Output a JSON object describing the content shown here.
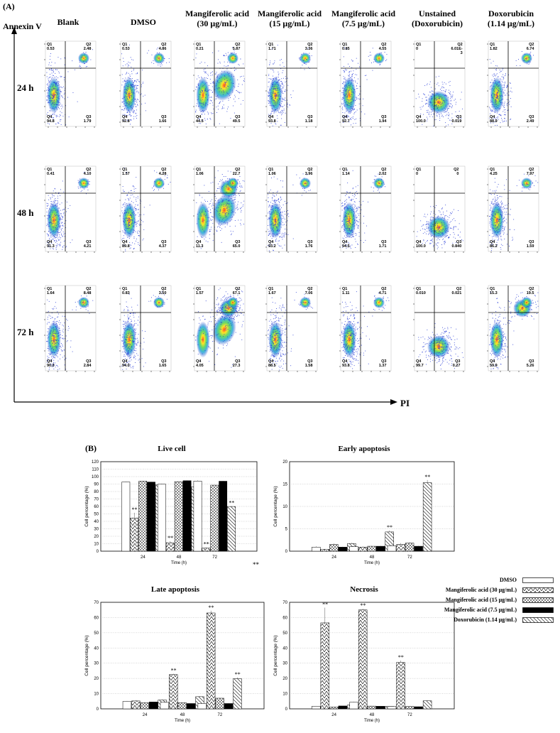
{
  "panel_a": {
    "label": "(A)",
    "y_axis_label": "Annexin V",
    "x_axis_label": "PI",
    "columns": [
      {
        "line1": "Blank",
        "line2": ""
      },
      {
        "line1": "DMSO",
        "line2": ""
      },
      {
        "line1": "Mangiferolic acid",
        "line2": "(30 μg/mL)"
      },
      {
        "line1": "Mangiferolic acid",
        "line2": "(15 μg/mL)"
      },
      {
        "line1": "Mangiferolic acid",
        "line2": "(7.5 μg/mL)"
      },
      {
        "line1": "Unstained",
        "line2": "(Doxorubicin)"
      },
      {
        "line1": "Doxorubicin",
        "line2": "(1.14 μg/mL)"
      }
    ],
    "rows": [
      "24 h",
      "48 h",
      "72 h"
    ],
    "quadrant_names": [
      "Q1",
      "Q2",
      "Q3",
      "Q4"
    ],
    "quadrant_values": [
      [
        [
          "0.53",
          "2.48",
          "1.79",
          "94.8"
        ],
        [
          "0.53",
          "4.86",
          "1.66",
          "92.8"
        ],
        [
          "0.21",
          "5.87",
          "49.5",
          "44.5"
        ],
        [
          "1.71",
          "3.36",
          "1.18",
          "93.8"
        ],
        [
          "0.85",
          "4.55",
          "1.94",
          "92.7"
        ],
        [
          "0",
          "6.01E-3",
          "0.019",
          "100.0"
        ],
        [
          "1.82",
          "6.74",
          "2.49",
          "88.9"
        ]
      ],
      [
        [
          "0.41",
          "4.10",
          "4.21",
          "91.3"
        ],
        [
          "1.57",
          "4.28",
          "4.37",
          "89.8"
        ],
        [
          "1.06",
          "22.7",
          "65.0",
          "11.3"
        ],
        [
          "1.06",
          "3.96",
          "1.76",
          "93.2"
        ],
        [
          "1.14",
          "2.02",
          "1.71",
          "94.5"
        ],
        [
          "0",
          "0",
          "0.840",
          "100.0"
        ],
        [
          "4.25",
          "7.97",
          "1.59",
          "86.2"
        ]
      ],
      [
        [
          "1.64",
          "8.48",
          "2.84",
          "90.0"
        ],
        [
          "0.83",
          "3.50",
          "1.65",
          "94.0"
        ],
        [
          "1.57",
          "67.1",
          "27.3",
          "4.05"
        ],
        [
          "1.67",
          "7.06",
          "1.58",
          "88.5"
        ],
        [
          "1.11",
          "4.71",
          "1.37",
          "93.8"
        ],
        [
          "0.010",
          "0.021",
          "0.27",
          "99.7"
        ],
        [
          "15.3",
          "19.5",
          "5.26",
          "59.9"
        ]
      ]
    ]
  },
  "panel_b": {
    "label": "(B)",
    "stray_mark": "**",
    "legend": [
      {
        "label": "DMSO",
        "pattern": "white"
      },
      {
        "label": "Mangiferolic acid (30 μg/mL)",
        "pattern": "triangles"
      },
      {
        "label": "Mangiferolic acid (15 μg/mL)",
        "pattern": "cross"
      },
      {
        "label": "Mangiferolic acid (7.5 μg/mL)",
        "pattern": "black"
      },
      {
        "label": "Doxorubicin (1.14 μg/mL)",
        "pattern": "diag"
      }
    ]
  },
  "chart_data": [
    {
      "type": "bar",
      "title": "Live cell",
      "xlabel": "Time (h)",
      "ylabel": "Cell percentage (%)",
      "categories": [
        "24",
        "48",
        "72"
      ],
      "ylim": [
        0,
        120
      ],
      "yticks": [
        0,
        10,
        20,
        30,
        40,
        50,
        60,
        70,
        80,
        90,
        100,
        110,
        120
      ],
      "series": [
        {
          "name": "DMSO",
          "values": [
            92.8,
            89.8,
            94.0
          ]
        },
        {
          "name": "Mangiferolic acid (30 μg/mL)",
          "values": [
            44.5,
            11.3,
            4.05
          ]
        },
        {
          "name": "Mangiferolic acid (15 μg/mL)",
          "values": [
            93.8,
            93.2,
            88.5
          ]
        },
        {
          "name": "Mangiferolic acid (7.5 μg/mL)",
          "values": [
            92.7,
            94.5,
            93.8
          ]
        },
        {
          "name": "Doxorubicin (1.14 μg/mL)",
          "values": [
            88.9,
            86.2,
            59.9
          ]
        }
      ],
      "errors": [
        [
          0.5,
          0.5,
          1.0
        ],
        [
          7,
          2,
          1
        ],
        [
          0.5,
          0.5,
          0.5
        ],
        [
          0.5,
          0.5,
          0.5
        ],
        [
          0.5,
          0.5,
          0.5
        ]
      ],
      "significance": [
        {
          "series": 1,
          "category": 0,
          "mark": "**"
        },
        {
          "series": 1,
          "category": 1,
          "mark": "**"
        },
        {
          "series": 1,
          "category": 2,
          "mark": "**"
        },
        {
          "series": 4,
          "category": 2,
          "mark": "**"
        }
      ]
    },
    {
      "type": "bar",
      "title": "Early apoptosis",
      "xlabel": "Time (h)",
      "ylabel": "Cell percentage (%)",
      "categories": [
        "24",
        "48",
        "72"
      ],
      "ylim": [
        0,
        20
      ],
      "yticks": [
        0,
        5,
        10,
        15,
        20
      ],
      "series": [
        {
          "name": "DMSO",
          "values": [
            0.9,
            1.0,
            1.2
          ]
        },
        {
          "name": "Mangiferolic acid (30 μg/mL)",
          "values": [
            0.4,
            0.9,
            1.5
          ]
        },
        {
          "name": "Mangiferolic acid (15 μg/mL)",
          "values": [
            1.5,
            1.1,
            1.8
          ]
        },
        {
          "name": "Mangiferolic acid (7.5 μg/mL)",
          "values": [
            0.9,
            1.1,
            1.1
          ]
        },
        {
          "name": "Doxorubicin (1.14 μg/mL)",
          "values": [
            1.7,
            4.3,
            15.3
          ]
        }
      ],
      "errors": [
        [
          0.2,
          0.2,
          0.3
        ],
        [
          0.1,
          0.2,
          0.3
        ],
        [
          0.2,
          0.1,
          0.2
        ],
        [
          0.1,
          0.1,
          0.1
        ],
        [
          0.2,
          0.3,
          0.6
        ]
      ],
      "significance": [
        {
          "series": 4,
          "category": 1,
          "mark": "**"
        },
        {
          "series": 4,
          "category": 2,
          "mark": "**"
        }
      ]
    },
    {
      "type": "bar",
      "title": "Late apoptosis",
      "xlabel": "Time (h)",
      "ylabel": "Cell percentage (%)",
      "categories": [
        "24",
        "48",
        "72"
      ],
      "ylim": [
        0,
        70
      ],
      "yticks": [
        0,
        10,
        20,
        30,
        40,
        50,
        60,
        70
      ],
      "series": [
        {
          "name": "DMSO",
          "values": [
            4.9,
            4.3,
            3.5
          ]
        },
        {
          "name": "Mangiferolic acid (30 μg/mL)",
          "values": [
            5.2,
            22.5,
            63.0
          ]
        },
        {
          "name": "Mangiferolic acid (15 μg/mL)",
          "values": [
            4.0,
            4.0,
            7.0
          ]
        },
        {
          "name": "Mangiferolic acid (7.5 μg/mL)",
          "values": [
            4.5,
            3.5,
            3.5
          ]
        },
        {
          "name": "Doxorubicin (1.14 μg/mL)",
          "values": [
            5.8,
            8.0,
            19.8
          ]
        }
      ],
      "errors": [
        [
          0.3,
          0.3,
          0.3
        ],
        [
          0.5,
          0.5,
          1.5
        ],
        [
          0.3,
          0.3,
          0.3
        ],
        [
          0.2,
          0.2,
          0.2
        ],
        [
          0.4,
          0.4,
          0.8
        ]
      ],
      "significance": [
        {
          "series": 1,
          "category": 1,
          "mark": "**"
        },
        {
          "series": 1,
          "category": 2,
          "mark": "**"
        },
        {
          "series": 4,
          "category": 2,
          "mark": "**"
        }
      ]
    },
    {
      "type": "bar",
      "title": "Necrosis",
      "xlabel": "Time (h)",
      "ylabel": "Cell percentage (%)",
      "categories": [
        "24",
        "48",
        "72"
      ],
      "ylim": [
        0,
        70
      ],
      "yticks": [
        0,
        10,
        20,
        30,
        40,
        50,
        60,
        70
      ],
      "series": [
        {
          "name": "DMSO",
          "values": [
            1.7,
            4.4,
            1.6
          ]
        },
        {
          "name": "Mangiferolic acid (30 μg/mL)",
          "values": [
            56.5,
            65.0,
            30.5
          ]
        },
        {
          "name": "Mangiferolic acid (15 μg/mL)",
          "values": [
            1.2,
            1.8,
            1.6
          ]
        },
        {
          "name": "Mangiferolic acid (7.5 μg/mL)",
          "values": [
            1.9,
            1.7,
            1.4
          ]
        },
        {
          "name": "Doxorubicin (1.14 μg/mL)",
          "values": [
            2.5,
            1.6,
            5.3
          ]
        }
      ],
      "errors": [
        [
          0.2,
          0.3,
          0.2
        ],
        [
          10,
          0.8,
          1.2
        ],
        [
          0.2,
          0.2,
          0.2
        ],
        [
          0.2,
          0.2,
          0.2
        ],
        [
          0.3,
          0.2,
          0.4
        ]
      ],
      "significance": [
        {
          "series": 1,
          "category": 0,
          "mark": "**"
        },
        {
          "series": 1,
          "category": 1,
          "mark": "**"
        },
        {
          "series": 1,
          "category": 2,
          "mark": "**"
        }
      ]
    }
  ]
}
